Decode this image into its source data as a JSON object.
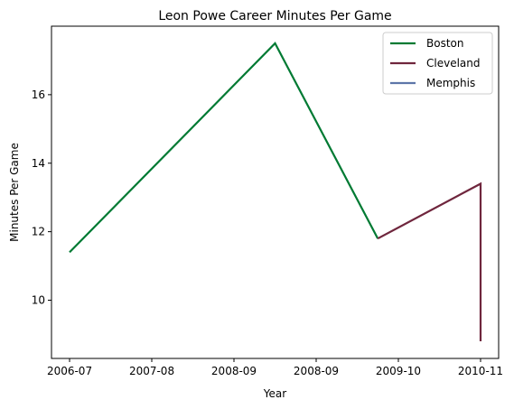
{
  "chart_data": {
    "type": "line",
    "title": "Leon Powe Career Minutes Per Game",
    "xlabel": "Year",
    "ylabel": "Minutes Per Game",
    "x_tick_labels": [
      "2006-07",
      "2007-08",
      "2008-09",
      "2008-09",
      "2009-10",
      "2010-11"
    ],
    "y_ticks": [
      10,
      12,
      14,
      16
    ],
    "xlim": [
      -0.22,
      5.22
    ],
    "ylim": [
      8.3,
      18.0
    ],
    "grid": false,
    "legend_position": "top-right",
    "series": [
      {
        "name": "Boston",
        "color": "#007A33",
        "x": [
          0,
          2.5,
          3.75
        ],
        "y": [
          11.4,
          17.5,
          11.8
        ]
      },
      {
        "name": "Cleveland",
        "color": "#6F263D",
        "x": [
          3.75,
          5,
          5
        ],
        "y": [
          11.8,
          13.4,
          8.8
        ]
      },
      {
        "name": "Memphis",
        "color": "#5D76A9",
        "x": [],
        "y": []
      }
    ]
  }
}
